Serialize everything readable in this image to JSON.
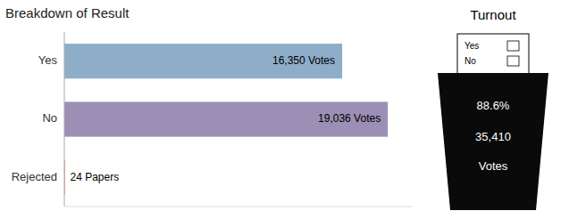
{
  "chart_data": {
    "type": "bar",
    "orientation": "horizontal",
    "title": "Breakdown of Result",
    "categories": [
      "Yes",
      "No",
      "Rejected"
    ],
    "values": [
      16350,
      19036,
      24
    ],
    "value_labels": [
      "16,350  Votes",
      "19,036 Votes",
      "24 Papers"
    ],
    "data_labels": true,
    "colors": [
      "#8eadc9",
      "#9b8fb5",
      "#c0392b"
    ],
    "xlim": [
      0,
      20500
    ],
    "tick_labels": "y",
    "grid": false,
    "annotations": [
      "Turnout",
      "Yes",
      "No",
      "88.6%",
      "35,410",
      "Votes"
    ]
  }
}
